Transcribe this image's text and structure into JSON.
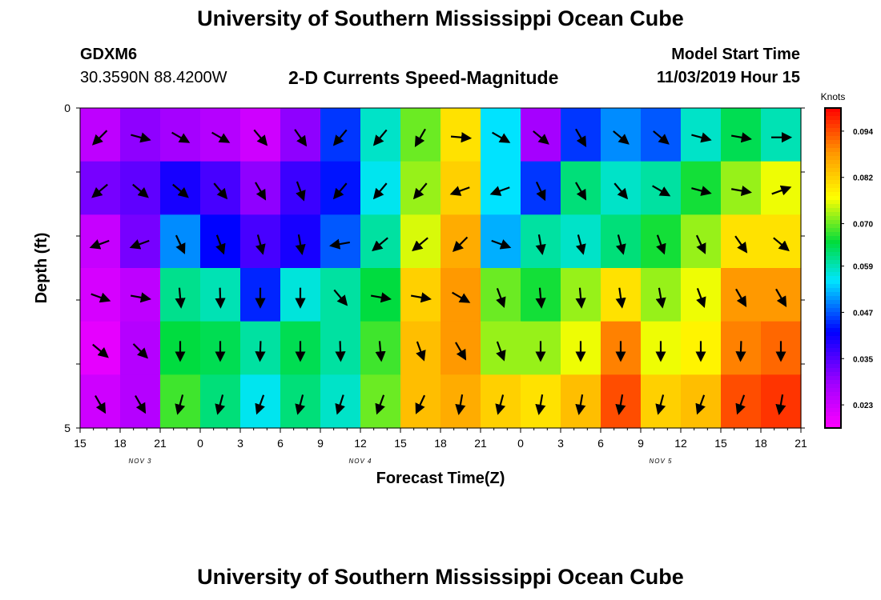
{
  "header": {
    "title": "University of Southern Mississippi Ocean Cube",
    "station": "GDXM6",
    "coordinates": "30.3590N 88.4200W",
    "subtitle": "2-D Currents Speed-Magnitude",
    "model_start_label": "Model Start Time",
    "model_start_value": "11/03/2019 Hour 15"
  },
  "footer": {
    "title": "University of Southern Mississippi Ocean Cube"
  },
  "chart_data": {
    "type": "heatmap",
    "title": "2-D Currents Speed-Magnitude",
    "xlabel": "Forecast Time(Z)",
    "ylabel": "Depth (ft)",
    "colorbar_label": "Knots",
    "colorbar_ticks": [
      "0.094",
      "0.082",
      "0.070",
      "0.059",
      "0.047",
      "0.035",
      "0.023"
    ],
    "colorbar_range": [
      0.017,
      0.1
    ],
    "x_tick_labels": [
      "15",
      "18",
      "21",
      "0",
      "3",
      "6",
      "9",
      "12",
      "15",
      "18",
      "21",
      "0",
      "3",
      "6",
      "9",
      "12",
      "15",
      "18",
      "21"
    ],
    "x_range_hours": [
      0,
      54
    ],
    "date_labels": [
      {
        "text": "NOV 3",
        "hour": 4.5
      },
      {
        "text": "NOV 4",
        "hour": 21
      },
      {
        "text": "NOV 5",
        "hour": 43.5
      }
    ],
    "y_tick_labels": [
      "0",
      "5"
    ],
    "depth_range": [
      0,
      5
    ],
    "depth_layers": 6,
    "time_steps": 18,
    "speed_knots": [
      [
        0.025,
        0.03,
        0.028,
        0.026,
        0.023,
        0.03,
        0.045,
        0.058,
        0.07,
        0.08,
        0.055,
        0.028,
        0.045,
        0.05,
        0.047,
        0.058,
        0.064,
        0.059
      ],
      [
        0.032,
        0.034,
        0.04,
        0.036,
        0.03,
        0.037,
        0.043,
        0.056,
        0.072,
        0.082,
        0.055,
        0.045,
        0.062,
        0.058,
        0.06,
        0.066,
        0.072,
        0.076
      ],
      [
        0.024,
        0.032,
        0.05,
        0.042,
        0.036,
        0.04,
        0.047,
        0.06,
        0.075,
        0.086,
        0.052,
        0.06,
        0.058,
        0.062,
        0.066,
        0.072,
        0.08,
        0.08
      ],
      [
        0.022,
        0.025,
        0.061,
        0.059,
        0.044,
        0.057,
        0.06,
        0.065,
        0.082,
        0.088,
        0.07,
        0.066,
        0.072,
        0.08,
        0.072,
        0.076,
        0.088,
        0.088
      ],
      [
        0.02,
        0.026,
        0.065,
        0.064,
        0.06,
        0.064,
        0.06,
        0.068,
        0.084,
        0.088,
        0.072,
        0.072,
        0.076,
        0.09,
        0.076,
        0.078,
        0.09,
        0.092
      ],
      [
        0.023,
        0.026,
        0.068,
        0.062,
        0.056,
        0.062,
        0.058,
        0.07,
        0.084,
        0.086,
        0.082,
        0.08,
        0.084,
        0.094,
        0.082,
        0.084,
        0.094,
        0.096
      ]
    ],
    "direction_deg": [
      [
        225,
        345,
        330,
        330,
        310,
        305,
        230,
        230,
        240,
        355,
        330,
        320,
        300,
        320,
        320,
        345,
        350,
        0
      ],
      [
        220,
        320,
        320,
        310,
        300,
        290,
        230,
        230,
        230,
        200,
        200,
        295,
        300,
        310,
        330,
        345,
        350,
        20
      ],
      [
        200,
        200,
        295,
        290,
        285,
        280,
        190,
        220,
        220,
        225,
        340,
        280,
        285,
        285,
        290,
        295,
        305,
        320
      ],
      [
        340,
        350,
        275,
        272,
        270,
        270,
        310,
        350,
        350,
        330,
        290,
        275,
        275,
        278,
        280,
        290,
        300,
        300
      ],
      [
        320,
        315,
        270,
        270,
        268,
        270,
        272,
        275,
        290,
        300,
        290,
        270,
        270,
        270,
        270,
        270,
        268,
        270
      ],
      [
        300,
        300,
        255,
        255,
        250,
        255,
        252,
        250,
        245,
        260,
        255,
        260,
        260,
        260,
        255,
        250,
        250,
        260
      ]
    ],
    "legend_position": "right"
  }
}
